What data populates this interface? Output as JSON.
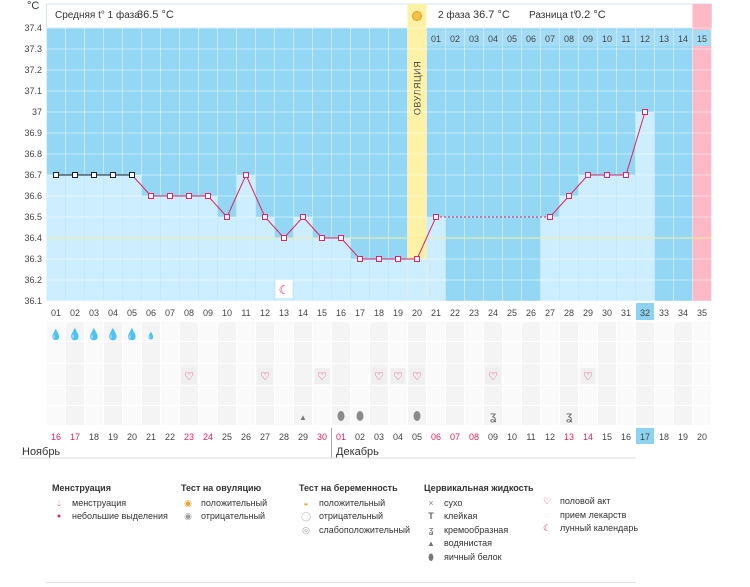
{
  "header": {
    "unit": "°C",
    "phase1_label": "Средняя t° 1 фаза",
    "phase1_value": "36.5 °C",
    "phase2_label": "2 фаза",
    "phase2_value": "36.7 °C",
    "diff_label": "Разница t°",
    "diff_value": "0.2 °C"
  },
  "ovulation_label": "ОВУЛЯЦИЯ",
  "months": {
    "november": "Ноябрь",
    "december": "Декабрь"
  },
  "colors": {
    "phase_bg": "#93d7f5",
    "bar_fill": "#cdeeff",
    "ovulation": "#fff2a6",
    "period": "#ffb8c6",
    "line": "#e1245f",
    "highlight_cell": "#8dd3f0",
    "weekend_date": "#e1245f"
  },
  "chart_data": {
    "type": "line",
    "ylabel": "°C",
    "ylim": [
      36.1,
      37.4
    ],
    "yticks": [
      37.4,
      37.3,
      37.2,
      37.1,
      37.0,
      36.9,
      36.8,
      36.7,
      36.6,
      36.5,
      36.4,
      36.3,
      36.2,
      36.1
    ],
    "ytick_labels": [
      "37.4",
      "37.3",
      "37.2",
      "37.1",
      "37",
      "36.9",
      "36.8",
      "36.7",
      "36.6",
      "36.5",
      "36.4",
      "36.3",
      "36.2",
      "36.1"
    ],
    "coverline": 36.4,
    "cycle_days": [
      "01",
      "02",
      "03",
      "04",
      "05",
      "06",
      "07",
      "08",
      "09",
      "10",
      "11",
      "12",
      "13",
      "14",
      "15",
      "16",
      "17",
      "18",
      "19",
      "20",
      "21",
      "22",
      "23",
      "24",
      "25",
      "26",
      "27",
      "28",
      "29",
      "30",
      "31",
      "32",
      "33",
      "34",
      "35"
    ],
    "phase2_days": [
      "01",
      "02",
      "03",
      "04",
      "05",
      "06",
      "07",
      "08",
      "09",
      "10",
      "11",
      "12",
      "13",
      "14",
      "15"
    ],
    "dates": [
      "16",
      "17",
      "18",
      "19",
      "20",
      "21",
      "22",
      "23",
      "24",
      "25",
      "26",
      "27",
      "28",
      "29",
      "30",
      "01",
      "02",
      "03",
      "04",
      "05",
      "06",
      "07",
      "08",
      "09",
      "10",
      "11",
      "12",
      "13",
      "14",
      "15",
      "16",
      "17",
      "18",
      "19",
      "20"
    ],
    "weekend_dates": [
      0,
      1,
      7,
      8,
      14,
      15,
      20,
      21,
      22,
      27,
      28
    ],
    "current_day_index": 31,
    "ovulation_day_index": 19,
    "period_start_index": 34,
    "series": [
      {
        "values": [
          36.7,
          36.7,
          36.7,
          36.7,
          36.7,
          36.6,
          36.6,
          36.6,
          36.6,
          36.5,
          36.7,
          36.5,
          36.4,
          36.5,
          36.4,
          36.4,
          36.3,
          36.3,
          36.3,
          36.3,
          36.5,
          null,
          null,
          null,
          null,
          null,
          36.5,
          36.6,
          36.7,
          36.7,
          36.7,
          37.0,
          null,
          null,
          null
        ],
        "menstruation_days": [
          0,
          1,
          2,
          3,
          4
        ]
      }
    ],
    "dashed_gap": [
      20,
      26
    ]
  },
  "markers": {
    "moon_day_index": 12,
    "menstruation": [
      2,
      3,
      3,
      3,
      3,
      1
    ],
    "intercourse_days": [
      7,
      11,
      14,
      17,
      18,
      19,
      23,
      28
    ],
    "fluid_watery_days": [
      13
    ],
    "fluid_eggwhite_days": [
      15,
      16,
      19
    ],
    "fluid_creamy_days": [
      23,
      27
    ]
  },
  "legend": {
    "menstruation": {
      "title": "Менструация",
      "items": [
        "менструация",
        "небольшие выделения"
      ]
    },
    "ovulation_test": {
      "title": "Тест на овуляцию",
      "items": [
        "положительный",
        "отрицательный"
      ]
    },
    "pregnancy_test": {
      "title": "Тест на беременность",
      "items": [
        "положительный",
        "отрицательный",
        "слабоположительный"
      ]
    },
    "cervical_fluid": {
      "title": "Цервикальная жидкость",
      "items": [
        "сухо",
        "клейкая",
        "кремообразная",
        "водянистая",
        "яичный белок"
      ]
    },
    "other": {
      "items": [
        "половой акт",
        "прием лекарств",
        "лунный календарь"
      ]
    }
  }
}
